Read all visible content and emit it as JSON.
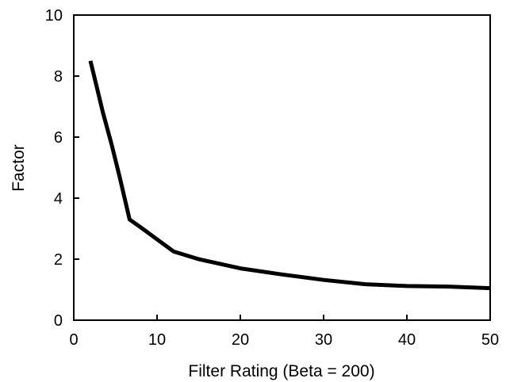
{
  "chart_data": {
    "type": "line",
    "title": "",
    "xlabel": "Filter Rating (Beta = 200)",
    "ylabel": "Factor",
    "xlim": [
      0,
      50
    ],
    "ylim": [
      0,
      10
    ],
    "xticks": [
      0,
      10,
      20,
      30,
      40,
      50
    ],
    "yticks": [
      0,
      2,
      4,
      6,
      8,
      10
    ],
    "grid": false,
    "legend": "none",
    "line_color": "#000000",
    "series": [
      {
        "x": [
          2,
          2.8,
          3.5,
          4.5,
          5.5,
          6.7,
          8,
          10,
          12,
          15,
          20,
          25,
          30,
          35,
          40,
          45,
          50
        ],
        "y": [
          8.5,
          7.6,
          6.8,
          5.8,
          4.7,
          3.3,
          3.05,
          2.65,
          2.25,
          2.0,
          1.7,
          1.5,
          1.32,
          1.18,
          1.12,
          1.1,
          1.05
        ]
      }
    ]
  }
}
